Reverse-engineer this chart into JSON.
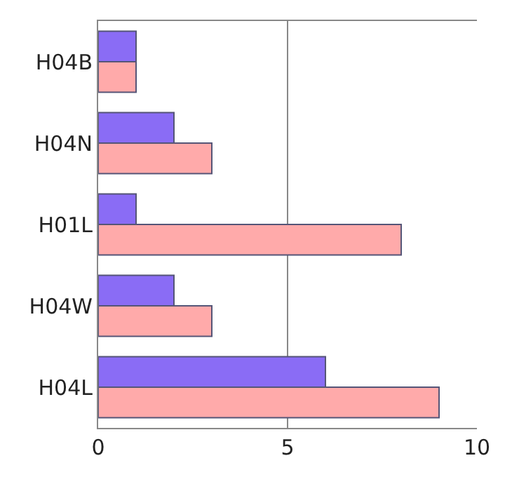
{
  "chart_data": {
    "type": "bar",
    "orientation": "horizontal",
    "categories": [
      "H04B",
      "H04N",
      "H01L",
      "H04W",
      "H04L"
    ],
    "series": [
      {
        "color": "#8a6cf5",
        "values": [
          1,
          2,
          1,
          2,
          6
        ]
      },
      {
        "color": "#ffaaaa",
        "values": [
          1,
          3,
          8,
          3,
          9
        ]
      }
    ],
    "xlim": [
      0,
      10
    ],
    "xticks": [
      0,
      5,
      10
    ],
    "grid": "x",
    "legend": false
  }
}
